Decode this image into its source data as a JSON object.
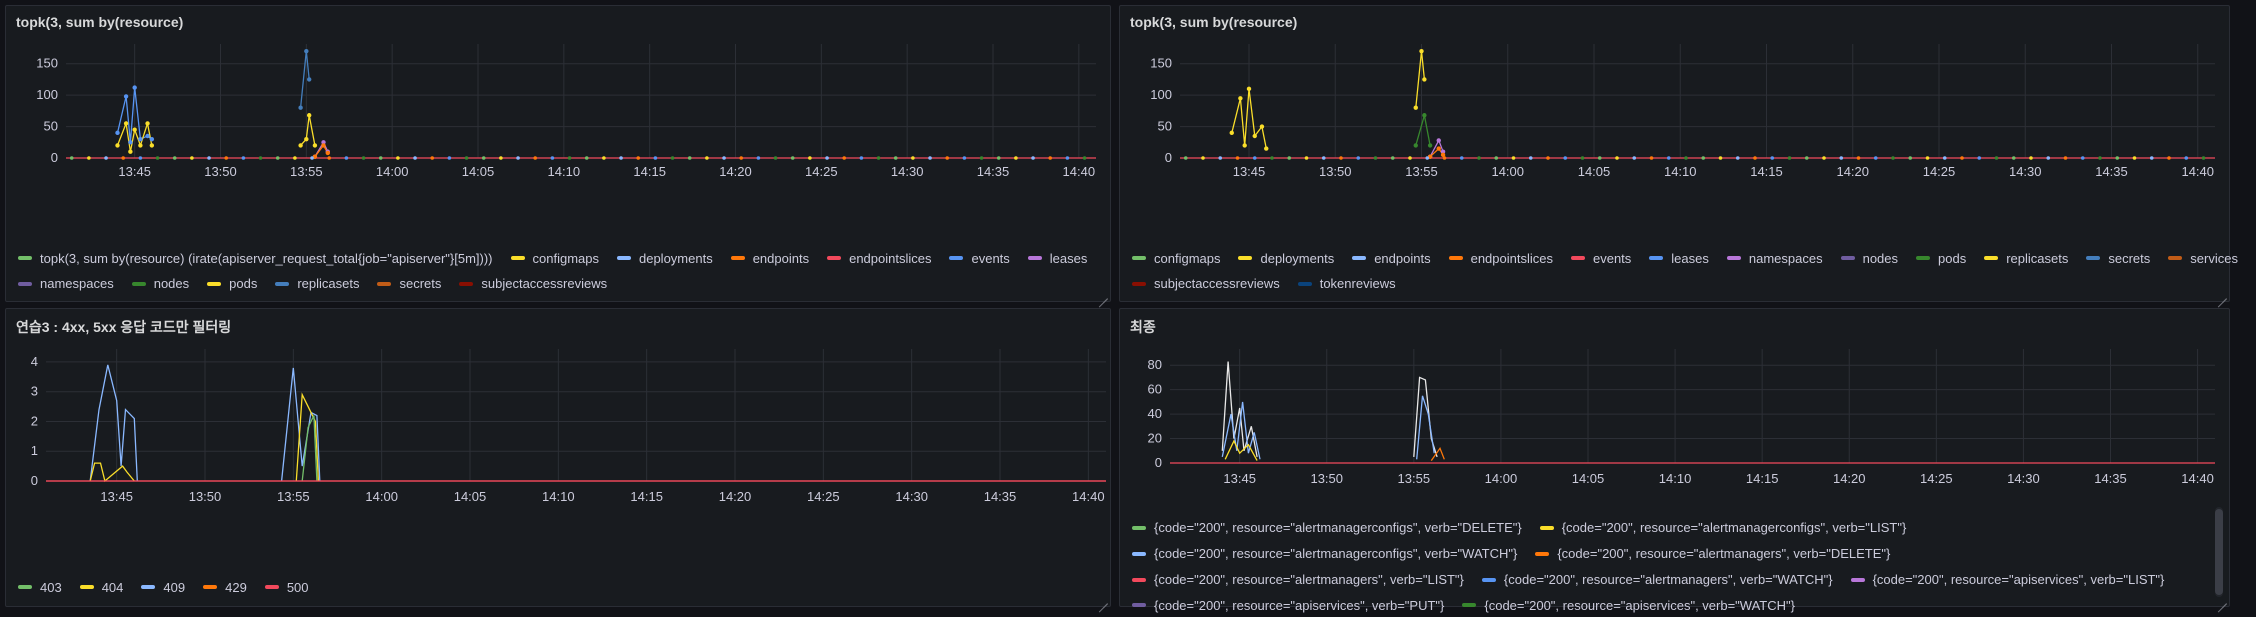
{
  "panels": [
    {
      "title": "topk(3, sum by(resource)",
      "x_ticks": [
        "13:45",
        "13:50",
        "13:55",
        "14:00",
        "14:05",
        "14:10",
        "14:15",
        "14:20",
        "14:25",
        "14:30",
        "14:35",
        "14:40"
      ],
      "y_ticks": [
        "0",
        "50",
        "100",
        "150"
      ],
      "legend_rows": [
        [
          {
            "label": "topk(3, sum by(resource) (irate(apiserver_request_total{job=\"apiserver\"}[5m])))",
            "color": "#73bf69"
          },
          {
            "label": "configmaps",
            "color": "#fade2a"
          },
          {
            "label": "deployments",
            "color": "#8ab8ff"
          },
          {
            "label": "endpoints",
            "color": "#ff780a"
          },
          {
            "label": "endpointslices",
            "color": "#f2495c"
          },
          {
            "label": "events",
            "color": "#5794f2"
          },
          {
            "label": "leases",
            "color": "#b877d9"
          }
        ],
        [
          {
            "label": "namespaces",
            "color": "#705da0"
          },
          {
            "label": "nodes",
            "color": "#37872d"
          },
          {
            "label": "pods",
            "color": "#fade2a"
          },
          {
            "label": "replicasets",
            "color": "#447ebc"
          },
          {
            "label": "secrets",
            "color": "#c15c17"
          },
          {
            "label": "subjectaccessreviews",
            "color": "#890f02"
          }
        ]
      ]
    },
    {
      "title": "topk(3, sum by(resource)",
      "x_ticks": [
        "13:45",
        "13:50",
        "13:55",
        "14:00",
        "14:05",
        "14:10",
        "14:15",
        "14:20",
        "14:25",
        "14:30",
        "14:35",
        "14:40"
      ],
      "y_ticks": [
        "0",
        "50",
        "100",
        "150"
      ],
      "legend_rows": [
        [
          {
            "label": "configmaps",
            "color": "#73bf69"
          },
          {
            "label": "deployments",
            "color": "#fade2a"
          },
          {
            "label": "endpoints",
            "color": "#8ab8ff"
          },
          {
            "label": "endpointslices",
            "color": "#ff780a"
          },
          {
            "label": "events",
            "color": "#f2495c"
          },
          {
            "label": "leases",
            "color": "#5794f2"
          },
          {
            "label": "namespaces",
            "color": "#b877d9"
          },
          {
            "label": "nodes",
            "color": "#705da0"
          },
          {
            "label": "pods",
            "color": "#37872d"
          },
          {
            "label": "replicasets",
            "color": "#fade2a"
          },
          {
            "label": "secrets",
            "color": "#447ebc"
          },
          {
            "label": "services",
            "color": "#c15c17"
          }
        ],
        [
          {
            "label": "subjectaccessreviews",
            "color": "#890f02"
          },
          {
            "label": "tokenreviews",
            "color": "#0a437c"
          }
        ]
      ]
    },
    {
      "title": "연습3 : 4xx, 5xx 응답 코드만 필터링",
      "x_ticks": [
        "13:45",
        "13:50",
        "13:55",
        "14:00",
        "14:05",
        "14:10",
        "14:15",
        "14:20",
        "14:25",
        "14:30",
        "14:35",
        "14:40"
      ],
      "y_ticks": [
        "0",
        "1",
        "2",
        "3",
        "4"
      ],
      "legend_rows": [
        [
          {
            "label": "403",
            "color": "#73bf69"
          },
          {
            "label": "404",
            "color": "#fade2a"
          },
          {
            "label": "409",
            "color": "#8ab8ff"
          },
          {
            "label": "429",
            "color": "#ff780a"
          },
          {
            "label": "500",
            "color": "#f2495c"
          }
        ]
      ]
    },
    {
      "title": "최종",
      "x_ticks": [
        "13:45",
        "13:50",
        "13:55",
        "14:00",
        "14:05",
        "14:10",
        "14:15",
        "14:20",
        "14:25",
        "14:30",
        "14:35",
        "14:40"
      ],
      "y_ticks": [
        "0",
        "20",
        "40",
        "60",
        "80"
      ],
      "legend_rows": [
        [
          {
            "label": "{code=\"200\", resource=\"alertmanagerconfigs\", verb=\"DELETE\"}",
            "color": "#73bf69"
          },
          {
            "label": "{code=\"200\", resource=\"alertmanagerconfigs\", verb=\"LIST\"}",
            "color": "#fade2a"
          }
        ],
        [
          {
            "label": "{code=\"200\", resource=\"alertmanagerconfigs\", verb=\"WATCH\"}",
            "color": "#8ab8ff"
          },
          {
            "label": "{code=\"200\", resource=\"alertmanagers\", verb=\"DELETE\"}",
            "color": "#ff780a"
          }
        ],
        [
          {
            "label": "{code=\"200\", resource=\"alertmanagers\", verb=\"LIST\"}",
            "color": "#f2495c"
          },
          {
            "label": "{code=\"200\", resource=\"alertmanagers\", verb=\"WATCH\"}",
            "color": "#5794f2"
          },
          {
            "label": "{code=\"200\", resource=\"apiservices\", verb=\"LIST\"}",
            "color": "#b877d9"
          }
        ],
        [
          {
            "label": "{code=\"200\", resource=\"apiservices\", verb=\"PUT\"}",
            "color": "#705da0"
          },
          {
            "label": "{code=\"200\", resource=\"apiservices\", verb=\"WATCH\"}",
            "color": "#37872d"
          }
        ]
      ]
    }
  ],
  "chart_data": [
    {
      "type": "line",
      "title": "topk(3, sum by(resource)",
      "x_range": [
        "13:41",
        "14:41"
      ],
      "ylim": [
        0,
        175
      ],
      "grid": true,
      "legend_position": "bottom",
      "series": [
        {
          "name": "events",
          "color": "#5794f2",
          "points": [
            [
              "13:44:00",
              40
            ],
            [
              "13:44:30",
              98
            ],
            [
              "13:44:45",
              25
            ],
            [
              "13:45:00",
              112
            ],
            [
              "13:45:20",
              30
            ],
            [
              "13:45:45",
              35
            ],
            [
              "13:46:00",
              30
            ]
          ]
        },
        {
          "name": "configmaps",
          "color": "#fade2a",
          "points": [
            [
              "13:44:00",
              20
            ],
            [
              "13:44:30",
              55
            ],
            [
              "13:44:45",
              10
            ],
            [
              "13:45:00",
              45
            ],
            [
              "13:45:20",
              20
            ],
            [
              "13:45:45",
              55
            ],
            [
              "13:46:00",
              20
            ]
          ]
        },
        {
          "name": "replicasets",
          "color": "#447ebc",
          "points": [
            [
              "13:54:40",
              80
            ],
            [
              "13:55:00",
              170
            ],
            [
              "13:55:10",
              125
            ]
          ]
        },
        {
          "name": "pods",
          "color": "#fade2a",
          "points": [
            [
              "13:54:40",
              20
            ],
            [
              "13:55:00",
              30
            ],
            [
              "13:55:10",
              68
            ],
            [
              "13:55:30",
              20
            ]
          ]
        },
        {
          "name": "leases",
          "color": "#b877d9",
          "points": [
            [
              "13:55:30",
              2
            ],
            [
              "13:56:00",
              25
            ],
            [
              "13:56:15",
              10
            ]
          ]
        },
        {
          "name": "endpoints",
          "color": "#ff780a",
          "points": [
            [
              "13:55:30",
              2
            ],
            [
              "13:56:00",
              20
            ],
            [
              "13:56:15",
              8
            ]
          ]
        }
      ]
    },
    {
      "type": "line",
      "title": "topk(3, sum by(resource)",
      "x_range": [
        "13:41",
        "14:41"
      ],
      "ylim": [
        0,
        175
      ],
      "grid": true,
      "legend_position": "bottom",
      "series": [
        {
          "name": "deployments",
          "color": "#fade2a",
          "points": [
            [
              "13:44:00",
              40
            ],
            [
              "13:44:30",
              95
            ],
            [
              "13:44:45",
              20
            ],
            [
              "13:45:00",
              110
            ],
            [
              "13:45:20",
              35
            ],
            [
              "13:45:45",
              50
            ],
            [
              "13:46:00",
              15
            ]
          ]
        },
        {
          "name": "replicasets",
          "color": "#fade2a",
          "points": [
            [
              "13:54:40",
              80
            ],
            [
              "13:55:00",
              170
            ],
            [
              "13:55:10",
              125
            ]
          ]
        },
        {
          "name": "pods",
          "color": "#37872d",
          "points": [
            [
              "13:54:40",
              20
            ],
            [
              "13:55:10",
              68
            ],
            [
              "13:55:30",
              20
            ]
          ]
        },
        {
          "name": "namespaces",
          "color": "#b877d9",
          "points": [
            [
              "13:55:30",
              2
            ],
            [
              "13:56:00",
              28
            ],
            [
              "13:56:15",
              10
            ]
          ]
        },
        {
          "name": "endpointslices",
          "color": "#ff780a",
          "points": [
            [
              "13:55:30",
              2
            ],
            [
              "13:56:00",
              15
            ],
            [
              "13:56:15",
              5
            ]
          ]
        }
      ]
    },
    {
      "type": "line",
      "title": "연습3 : 4xx, 5xx 응답 코드만 필터링",
      "x_range": [
        "13:41",
        "14:41"
      ],
      "ylim": [
        0,
        4.3
      ],
      "grid": true,
      "legend_position": "bottom",
      "series": [
        {
          "name": "409",
          "color": "#8ab8ff",
          "points": [
            [
              "13:43:30",
              0
            ],
            [
              "13:44:00",
              2.4
            ],
            [
              "13:44:30",
              3.9
            ],
            [
              "13:45:00",
              2.7
            ],
            [
              "13:45:15",
              0.5
            ],
            [
              "13:45:30",
              2.4
            ],
            [
              "13:46:00",
              2.1
            ],
            [
              "13:46:10",
              0
            ]
          ]
        },
        {
          "name": "404",
          "color": "#fade2a",
          "points": [
            [
              "13:43:30",
              0
            ],
            [
              "13:43:45",
              0.6
            ],
            [
              "13:44:05",
              0.6
            ],
            [
              "13:44:20",
              0
            ],
            [
              "13:45:20",
              0.5
            ],
            [
              "13:45:35",
              0.3
            ],
            [
              "13:46:00",
              0
            ]
          ]
        },
        {
          "name": "409",
          "color": "#8ab8ff",
          "points": [
            [
              "13:54:20",
              0
            ],
            [
              "13:55:00",
              3.8
            ],
            [
              "13:55:30",
              0.5
            ],
            [
              "13:56:00",
              2.3
            ],
            [
              "13:56:20",
              2.2
            ],
            [
              "13:56:30",
              0
            ]
          ]
        },
        {
          "name": "404",
          "color": "#fade2a",
          "points": [
            [
              "13:55:10",
              0
            ],
            [
              "13:55:30",
              2.9
            ],
            [
              "13:55:50",
              2.5
            ],
            [
              "13:56:15",
              2.0
            ],
            [
              "13:56:25",
              0
            ]
          ]
        },
        {
          "name": "403",
          "color": "#73bf69",
          "points": [
            [
              "13:55:30",
              0
            ],
            [
              "13:55:50",
              1.8
            ],
            [
              "13:56:10",
              2.2
            ],
            [
              "13:56:20",
              0
            ]
          ]
        },
        {
          "name": "500",
          "color": "#f2495c",
          "points": [
            [
              "13:41:00",
              0
            ],
            [
              "14:41:00",
              0
            ]
          ]
        }
      ]
    },
    {
      "type": "line",
      "title": "최종",
      "x_range": [
        "13:41",
        "14:41"
      ],
      "ylim": [
        0,
        90
      ],
      "grid": true,
      "legend_position": "bottom",
      "series": [
        {
          "color": "#e8e8e8",
          "points": [
            [
              "13:44:00",
              10
            ],
            [
              "13:44:20",
              83
            ],
            [
              "13:44:40",
              20
            ],
            [
              "13:45:00",
              45
            ],
            [
              "13:45:15",
              10
            ],
            [
              "13:45:40",
              30
            ],
            [
              "13:46:00",
              5
            ]
          ]
        },
        {
          "color": "#8ab8ff",
          "points": [
            [
              "13:44:00",
              5
            ],
            [
              "13:44:30",
              40
            ],
            [
              "13:44:50",
              10
            ],
            [
              "13:45:10",
              50
            ],
            [
              "13:45:30",
              8
            ],
            [
              "13:45:50",
              25
            ],
            [
              "13:46:10",
              3
            ]
          ]
        },
        {
          "color": "#fade2a",
          "points": [
            [
              "13:44:10",
              3
            ],
            [
              "13:44:40",
              18
            ],
            [
              "13:45:00",
              8
            ],
            [
              "13:45:30",
              15
            ],
            [
              "13:46:00",
              2
            ]
          ]
        },
        {
          "color": "#e8e8e8",
          "points": [
            [
              "13:55:00",
              5
            ],
            [
              "13:55:20",
              70
            ],
            [
              "13:55:40",
              68
            ],
            [
              "13:56:00",
              20
            ],
            [
              "13:56:20",
              5
            ]
          ]
        },
        {
          "color": "#8ab8ff",
          "points": [
            [
              "13:55:10",
              3
            ],
            [
              "13:55:30",
              55
            ],
            [
              "13:55:50",
              40
            ],
            [
              "13:56:10",
              8
            ]
          ]
        },
        {
          "color": "#ff780a",
          "points": [
            [
              "13:56:00",
              2
            ],
            [
              "13:56:30",
              12
            ],
            [
              "13:56:45",
              3
            ]
          ]
        }
      ]
    }
  ]
}
